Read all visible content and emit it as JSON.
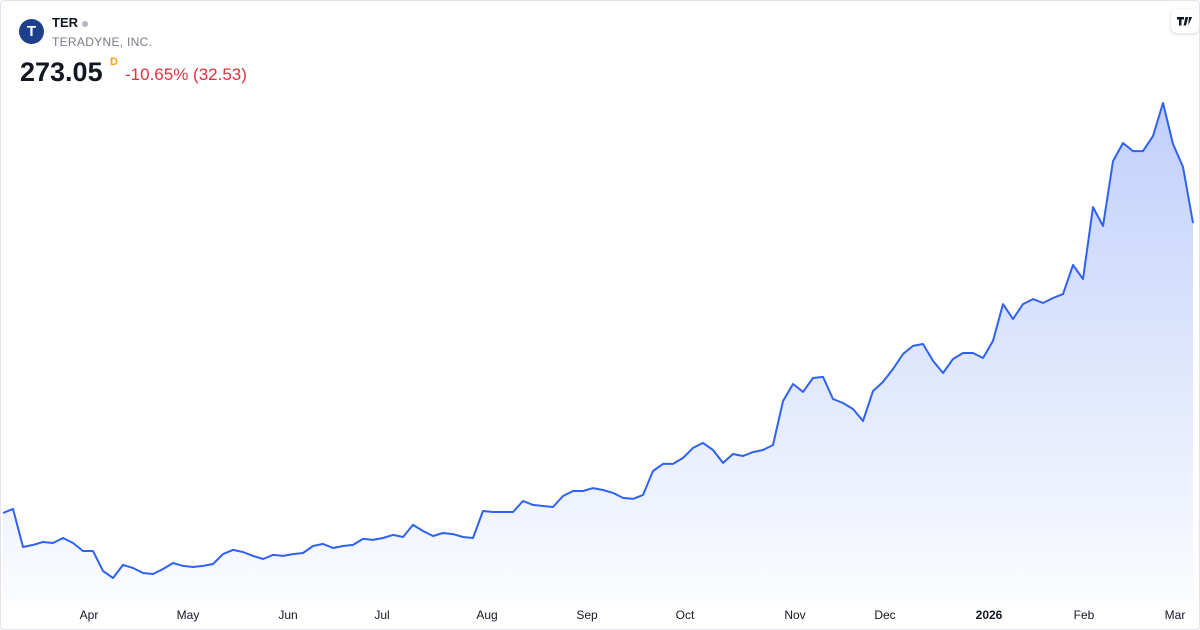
{
  "chart_data": {
    "type": "area",
    "title": "TER",
    "subtitle": "TERADYNE, INC.",
    "logo_text": "T",
    "last_price": "273.05",
    "interval": "D",
    "change": "-10.65% (32.53)",
    "color": "#2f62f0",
    "values": [
      104.7,
      107.1,
      85.0,
      86.2,
      87.9,
      87.3,
      90.2,
      87.3,
      82.7,
      82.7,
      71.1,
      67.0,
      74.6,
      72.8,
      69.9,
      69.3,
      72.2,
      75.7,
      74.0,
      73.4,
      74.0,
      75.1,
      80.9,
      83.3,
      82.1,
      79.8,
      78.0,
      80.4,
      79.8,
      80.9,
      81.5,
      85.6,
      86.8,
      84.4,
      85.6,
      86.2,
      89.7,
      89.1,
      90.2,
      92.0,
      90.8,
      97.8,
      94.3,
      91.4,
      93.1,
      92.5,
      90.8,
      90.2,
      105.9,
      105.3,
      105.3,
      105.3,
      111.7,
      109.4,
      108.8,
      108.2,
      114.6,
      117.5,
      117.5,
      119.2,
      118.1,
      116.4,
      113.5,
      112.9,
      115.2,
      129.1,
      133.2,
      133.2,
      136.7,
      142.5,
      145.4,
      141.3,
      133.8,
      139.0,
      137.8,
      140.1,
      141.3,
      144.2,
      169.7,
      179.6,
      175.0,
      183.1,
      183.7,
      170.9,
      168.6,
      165.1,
      158.1,
      175.5,
      180.8,
      188.3,
      197.0,
      201.7,
      202.8,
      193.0,
      186.0,
      194.1,
      197.6,
      197.6,
      194.7,
      204.6,
      226.0,
      217.3,
      226.0,
      228.9,
      226.6,
      229.5,
      231.8,
      248.7,
      240.5,
      282.3,
      271.3,
      309.0,
      319.5,
      314.8,
      314.8,
      323.5,
      342.7,
      318.9,
      305.58,
      273.05
    ],
    "xticks": [
      {
        "value": 8.6,
        "label": "Apr"
      },
      {
        "value": 18.5,
        "label": "May"
      },
      {
        "value": 28.5,
        "label": "Jun"
      },
      {
        "value": 37.9,
        "label": "Jul"
      },
      {
        "value": 48.4,
        "label": "Aug"
      },
      {
        "value": 58.4,
        "label": "Sep"
      },
      {
        "value": 68.2,
        "label": "Oct"
      },
      {
        "value": 79.2,
        "label": "Nov"
      },
      {
        "value": 88.2,
        "label": "Dec"
      },
      {
        "value": 98.6,
        "label": "2026"
      },
      {
        "value": 108.1,
        "label": "Feb"
      },
      {
        "value": 117.2,
        "label": "Mar"
      }
    ],
    "grid": false
  }
}
